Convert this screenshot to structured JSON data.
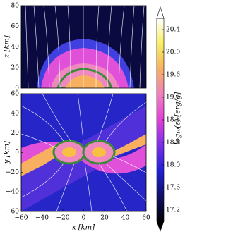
{
  "chart_data": [
    {
      "type": "heatmap",
      "ylabel": "z [km]",
      "xlim": [
        -60,
        60
      ],
      "ylim": [
        0,
        80
      ],
      "yticks": [
        0,
        20,
        40,
        60,
        80
      ]
    },
    {
      "type": "heatmap",
      "xlabel": "x [km]",
      "ylabel": "y [km]",
      "xlim": [
        -60,
        60
      ],
      "ylim": [
        -60,
        60
      ],
      "xticks": [
        {
          "value": -60,
          "label": "−60"
        },
        {
          "value": -40,
          "label": "−40"
        },
        {
          "value": -20,
          "label": "−20"
        },
        0,
        20,
        40,
        60
      ],
      "yticks": [
        {
          "value": -60,
          "label": "−60"
        },
        {
          "value": -40,
          "label": "−40"
        },
        {
          "value": -20,
          "label": "−20"
        },
        0,
        20,
        40,
        60
      ],
      "colorbar": {
        "label": "log₁₀(ε) [erg/g]",
        "lim": [
          17.0,
          20.6
        ],
        "ticks": [
          17.2,
          17.6,
          {
            "value": 18,
            "label": "18.0"
          },
          18.4,
          18.8,
          19.2,
          19.6,
          {
            "value": 20,
            "label": "20.0"
          },
          20.4
        ],
        "colors": [
          "#000000",
          "#10106a",
          "#2020d8",
          "#7a30e8",
          "#e040d8",
          "#f080c0",
          "#f8b060",
          "#f8f060",
          "#ffffff"
        ]
      }
    }
  ]
}
